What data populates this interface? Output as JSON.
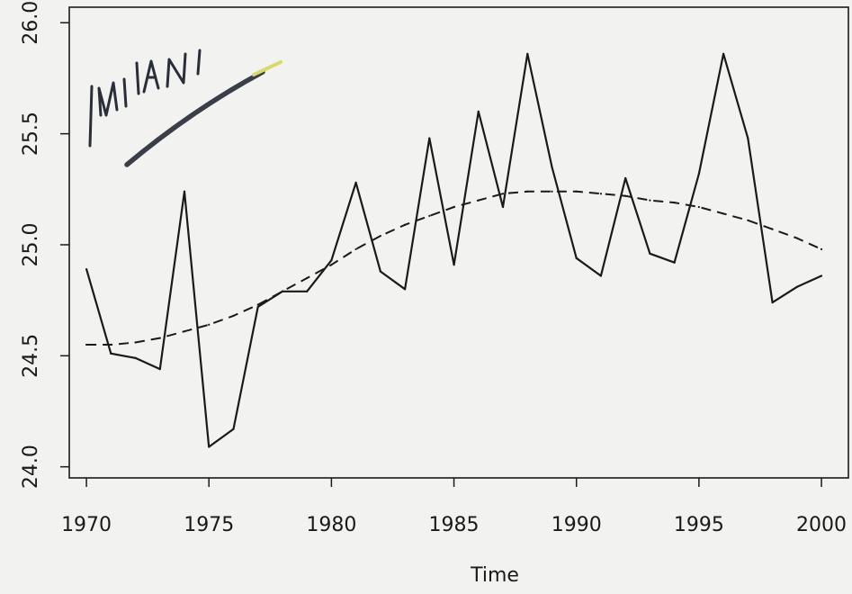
{
  "chart_data": {
    "type": "line",
    "xlabel": "Time",
    "ylabel": "",
    "xlim": [
      1969.3,
      2001.1
    ],
    "ylim": [
      23.95,
      26.07
    ],
    "x_ticks": [
      1970,
      1975,
      1980,
      1985,
      1990,
      1995,
      2000
    ],
    "x_tick_labels": [
      "1970",
      "1975",
      "1980",
      "1985",
      "1990",
      "1995",
      "2000"
    ],
    "y_ticks": [
      24.0,
      24.5,
      25.0,
      25.5,
      26.0
    ],
    "y_tick_labels": [
      "24.0",
      "24.5",
      "25.0",
      "25.5",
      "26.0"
    ],
    "grid": false,
    "annotation": "MILANI",
    "series": [
      {
        "style": "solid",
        "color": "#1a1a1a",
        "x": [
          1970,
          1971,
          1972,
          1973,
          1974,
          1975,
          1976,
          1977,
          1978,
          1979,
          1980,
          1981,
          1982,
          1983,
          1984,
          1985,
          1986,
          1987,
          1988,
          1989,
          1990,
          1991,
          1992,
          1993,
          1994,
          1995,
          1996,
          1997,
          1998,
          1999,
          2000
        ],
        "values": [
          24.89,
          24.51,
          24.49,
          24.44,
          25.24,
          24.09,
          24.17,
          24.72,
          24.79,
          24.79,
          24.93,
          25.28,
          24.88,
          24.8,
          25.48,
          24.91,
          25.6,
          25.17,
          25.86,
          25.35,
          24.94,
          24.86,
          25.3,
          24.96,
          24.92,
          25.32,
          25.86,
          25.48,
          24.74,
          24.81,
          24.86
        ]
      },
      {
        "style": "dashed",
        "color": "#1a1a1a",
        "x": [
          1970,
          1971,
          1972,
          1973,
          1974,
          1975,
          1976,
          1977,
          1978,
          1979,
          1980,
          1981,
          1982,
          1983,
          1984,
          1985,
          1986,
          1987,
          1988,
          1989,
          1990,
          1991,
          1992,
          1993,
          1994,
          1995,
          1996,
          1997,
          1998,
          1999,
          2000
        ],
        "values": [
          24.55,
          24.55,
          24.56,
          24.58,
          24.61,
          24.64,
          24.68,
          24.73,
          24.79,
          24.85,
          24.91,
          24.98,
          25.04,
          25.09,
          25.13,
          25.17,
          25.2,
          25.23,
          25.24,
          25.24,
          25.24,
          25.23,
          25.22,
          25.2,
          25.19,
          25.17,
          25.14,
          25.11,
          25.07,
          25.03,
          24.98
        ]
      }
    ]
  }
}
